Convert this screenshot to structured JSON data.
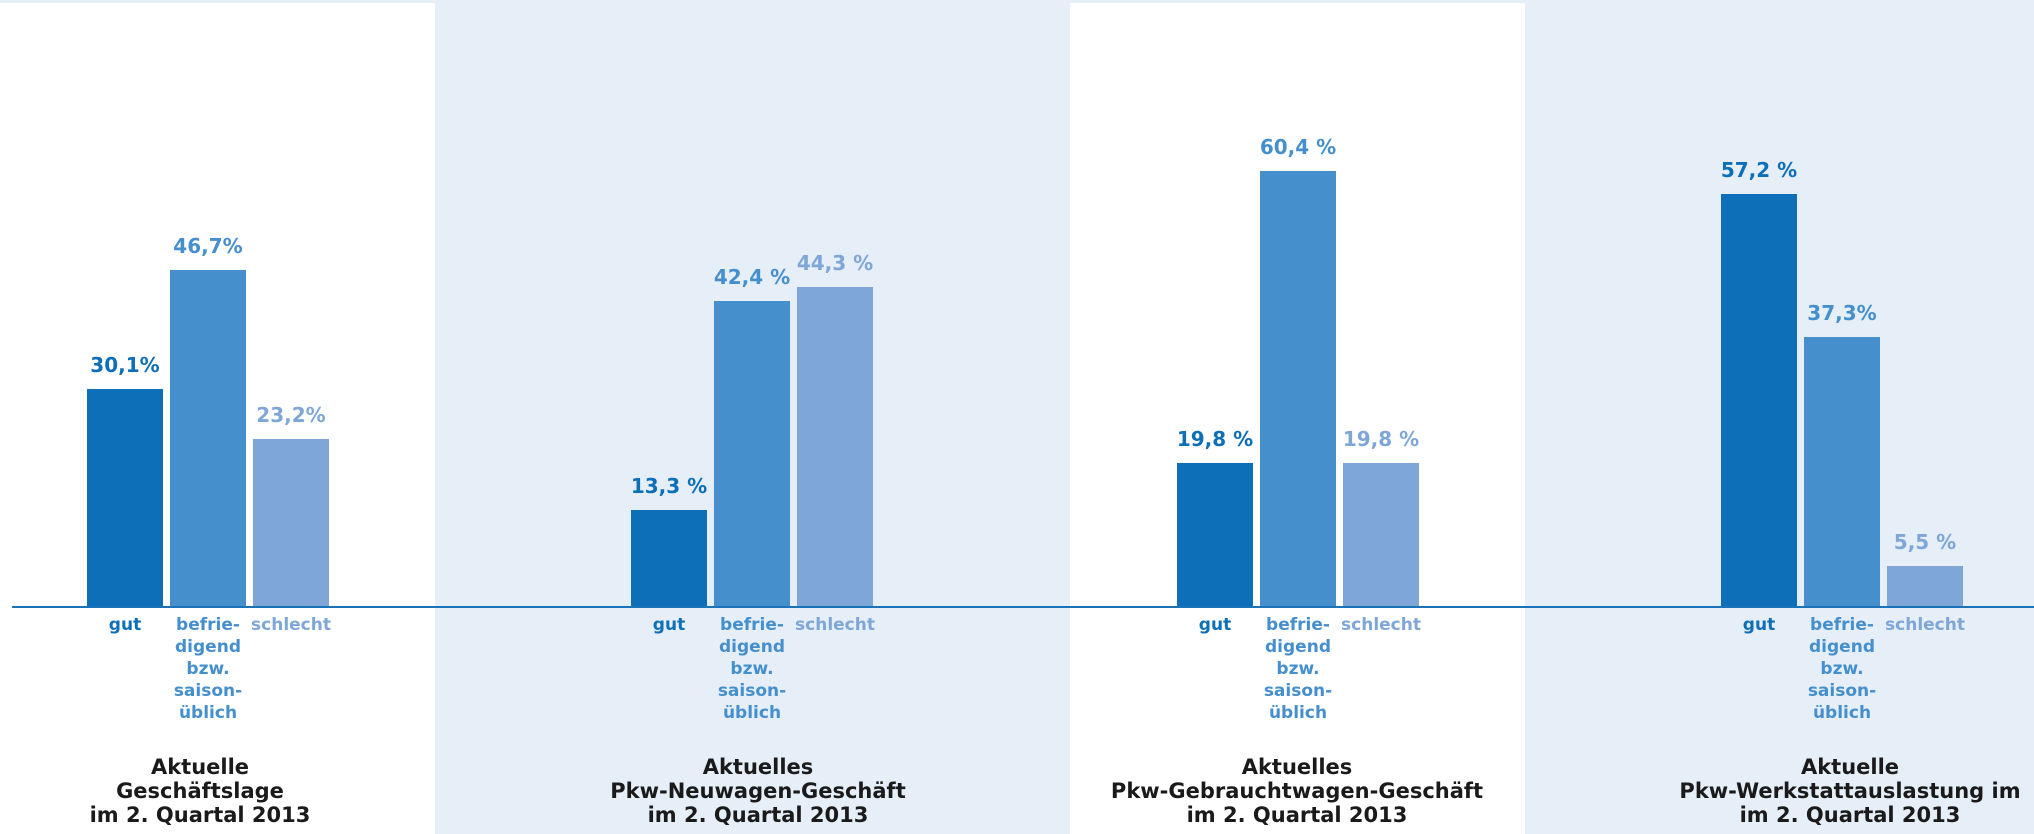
{
  "colors": {
    "gut": "#0d6fb8",
    "befriedigend": "#458fcd",
    "schlecht": "#7ea7d8",
    "panel_light": "#ffffff",
    "panel_tint": "#e6eef8"
  },
  "chart_data": [
    {
      "type": "bar",
      "categories": [
        "gut",
        "befrie-\ndigend\nbzw.\nsaison-\nüblich",
        "schlecht"
      ],
      "values": [
        30.1,
        46.7,
        23.2
      ],
      "value_labels": [
        "30,1%",
        "46,7%",
        "23,2%"
      ],
      "title": [
        "Aktuelle",
        "Geschäftslage",
        "im 2. Quartal 2013"
      ],
      "ylim": [
        0,
        65
      ]
    },
    {
      "type": "bar",
      "categories": [
        "gut",
        "befrie-\ndigend\nbzw.\nsaison-\nüblich",
        "schlecht"
      ],
      "values": [
        13.3,
        42.4,
        44.3
      ],
      "value_labels": [
        "13,3 %",
        "42,4 %",
        "44,3 %"
      ],
      "title": [
        "Aktuelles",
        "Pkw-Neuwagen-Geschäft",
        "im 2. Quartal 2013"
      ],
      "ylim": [
        0,
        65
      ]
    },
    {
      "type": "bar",
      "categories": [
        "gut",
        "befrie-\ndigend\nbzw.\nsaison-\nüblich",
        "schlecht"
      ],
      "values": [
        19.8,
        60.4,
        19.8
      ],
      "value_labels": [
        "19,8 %",
        "60,4 %",
        "19,8 %"
      ],
      "title": [
        "Aktuelles",
        "Pkw-Gebrauchtwagen-Geschäft",
        "im 2. Quartal 2013"
      ],
      "ylim": [
        0,
        65
      ]
    },
    {
      "type": "bar",
      "categories": [
        "gut",
        "befrie-\ndigend\nbzw.\nsaison-\nüblich",
        "schlecht"
      ],
      "values": [
        57.2,
        37.3,
        5.5
      ],
      "value_labels": [
        "57,2 %",
        "37,3%",
        "5,5 %"
      ],
      "title": [
        "Aktuelle",
        "Pkw-Werkstattauslastung im",
        "im 2. Quartal 2013"
      ],
      "ylim": [
        0,
        65
      ]
    }
  ]
}
